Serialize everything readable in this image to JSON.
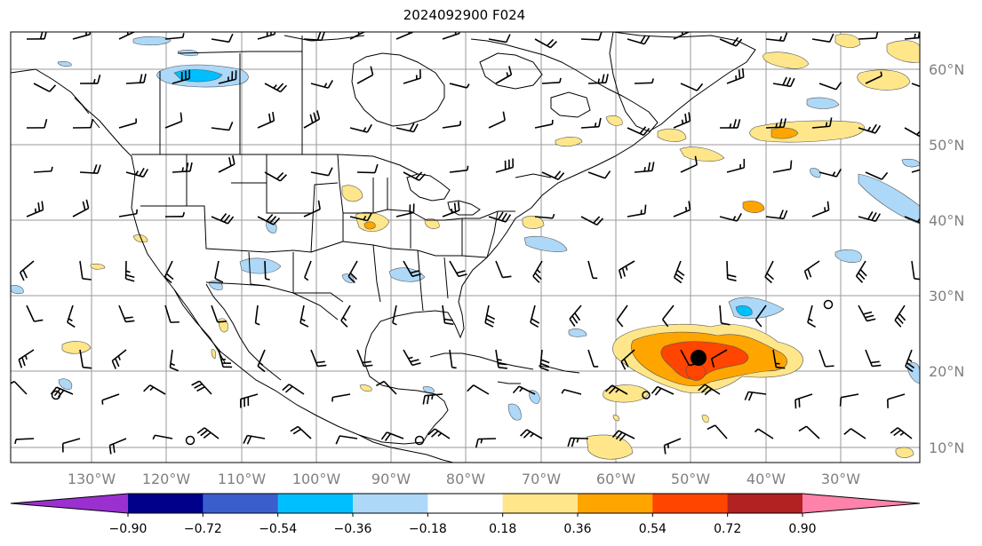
{
  "title": "2024092900 F024",
  "longitude_labels": [
    "130°W",
    "120°W",
    "110°W",
    "100°W",
    "90°W",
    "80°W",
    "70°W",
    "60°W",
    "50°W",
    "40°W",
    "30°W"
  ],
  "latitude_labels": [
    "60°N",
    "50°N",
    "40°N",
    "30°N",
    "20°N",
    "10°N"
  ],
  "colorbar": {
    "tick_labels": [
      "−0.90",
      "−0.72",
      "−0.54",
      "−0.36",
      "−0.18",
      "0.18",
      "0.36",
      "0.54",
      "0.72",
      "0.90"
    ],
    "colors": [
      "#9b30d0",
      "#00008b",
      "#3a5fcd",
      "#00bfff",
      "#add8f8",
      "#ffffff",
      "#ffe68a",
      "#ffa500",
      "#ff4500",
      "#b22222",
      "#ff82ab"
    ]
  },
  "storm_symbol": {
    "lon": -49,
    "lat": 21.5
  }
}
